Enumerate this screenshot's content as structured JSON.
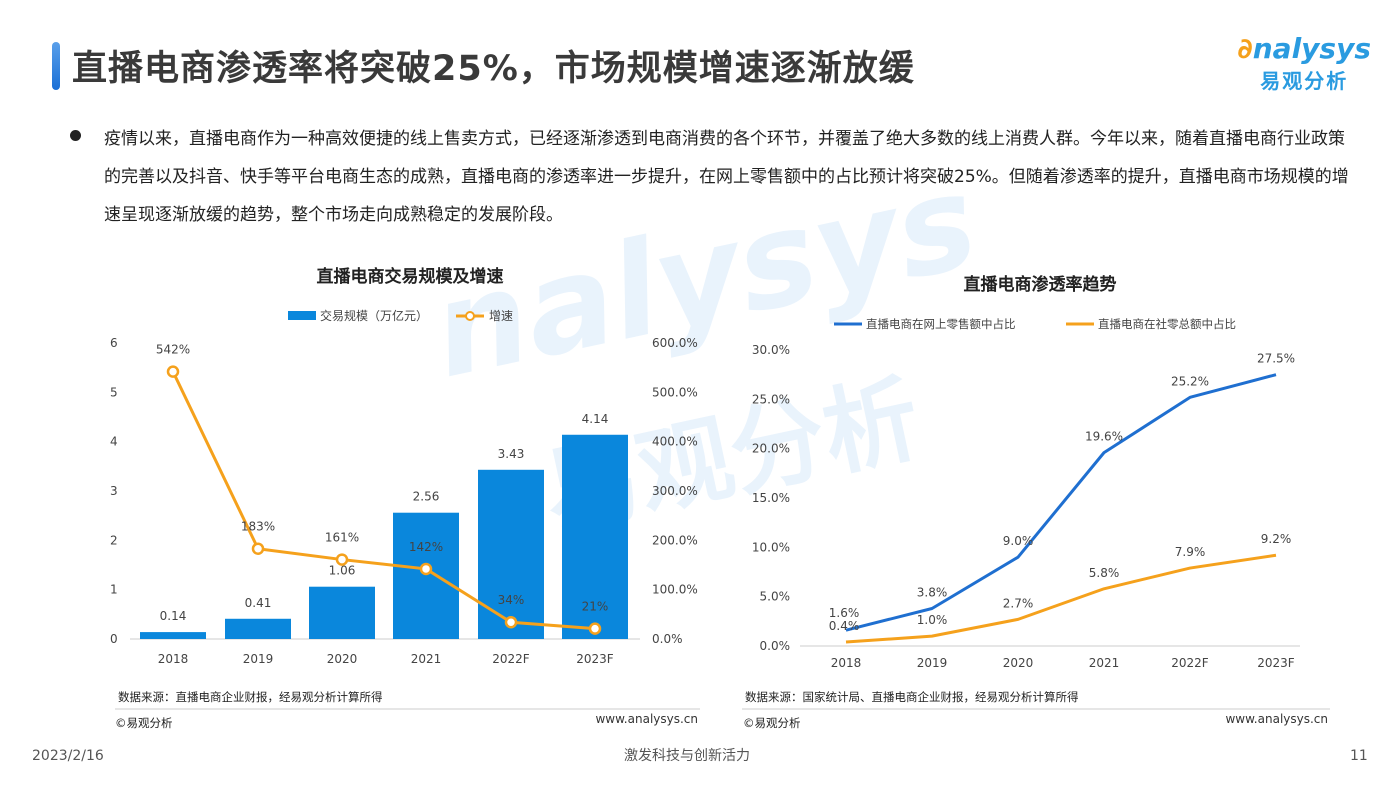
{
  "header": {
    "title": "直播电商渗透率将突破25%，市场规模增速逐渐放缓",
    "logo_en": "nalysys",
    "logo_cn": "易观分析"
  },
  "body_text": "疫情以来，直播电商作为一种高效便捷的线上售卖方式，已经逐渐渗透到电商消费的各个环节，并覆盖了绝大多数的线上消费人群。今年以来，随着直播电商行业政策的完善以及抖音、快手等平台电商生态的成熟，直播电商的渗透率进一步提升，在网上零售额中的占比预计将突破25%。但随着渗透率的提升，直播电商市场规模的增速呈现逐渐放缓的趋势，整个市场走向成熟稳定的发展阶段。",
  "footer": {
    "date": "2023/2/16",
    "slogan": "激发科技与创新活力",
    "page": "11"
  },
  "chart_data": [
    {
      "type": "bar",
      "title": "直播电商交易规模及增速",
      "categories": [
        "2018",
        "2019",
        "2020",
        "2021",
        "2022F",
        "2023F"
      ],
      "series": [
        {
          "name": "交易规模（万亿元）",
          "type": "bar",
          "values": [
            0.14,
            0.41,
            1.06,
            2.56,
            3.43,
            4.14
          ],
          "labels": [
            "0.14",
            "0.41",
            "1.06",
            "2.56",
            "3.43",
            "4.14"
          ],
          "color": "#0a87dc"
        },
        {
          "name": "增速",
          "type": "line",
          "axis": "right",
          "values": [
            542,
            183,
            161,
            142,
            34,
            21
          ],
          "labels": [
            "542%",
            "183%",
            "161%",
            "142%",
            "34%",
            "21%"
          ],
          "color": "#f5a11c"
        }
      ],
      "ylim": [
        0,
        6
      ],
      "yticks": [
        "0",
        "1",
        "2",
        "3",
        "4",
        "5",
        "6"
      ],
      "y2lim": [
        0,
        600
      ],
      "y2ticks": [
        "0.0%",
        "100.0%",
        "200.0%",
        "300.0%",
        "400.0%",
        "500.0%",
        "600.0%"
      ],
      "source": "数据来源：直播电商企业财报，经易观分析计算所得",
      "copyright": "©易观分析",
      "url": "www.analysys.cn",
      "legend": "top"
    },
    {
      "type": "line",
      "title": "直播电商渗透率趋势",
      "categories": [
        "2018",
        "2019",
        "2020",
        "2021",
        "2022F",
        "2023F"
      ],
      "series": [
        {
          "name": "直播电商在网上零售额中占比",
          "values": [
            1.6,
            3.8,
            9.0,
            19.6,
            25.2,
            27.5
          ],
          "labels": [
            "1.6%",
            "3.8%",
            "9.0%",
            "19.6%",
            "25.2%",
            "27.5%"
          ],
          "color": "#1f6fd0"
        },
        {
          "name": "直播电商在社零总额中占比",
          "values": [
            0.4,
            1.0,
            2.7,
            5.8,
            7.9,
            9.2
          ],
          "labels": [
            "0.4%",
            "1.0%",
            "2.7%",
            "5.8%",
            "7.9%",
            "9.2%"
          ],
          "color": "#f5a11c"
        }
      ],
      "ylim": [
        0,
        30
      ],
      "yticks": [
        "0.0%",
        "5.0%",
        "10.0%",
        "15.0%",
        "20.0%",
        "25.0%",
        "30.0%"
      ],
      "source": "数据来源：国家统计局、直播电商企业财报，经易观分析计算所得",
      "copyright": "©易观分析",
      "url": "www.analysys.cn",
      "legend": "top"
    }
  ]
}
